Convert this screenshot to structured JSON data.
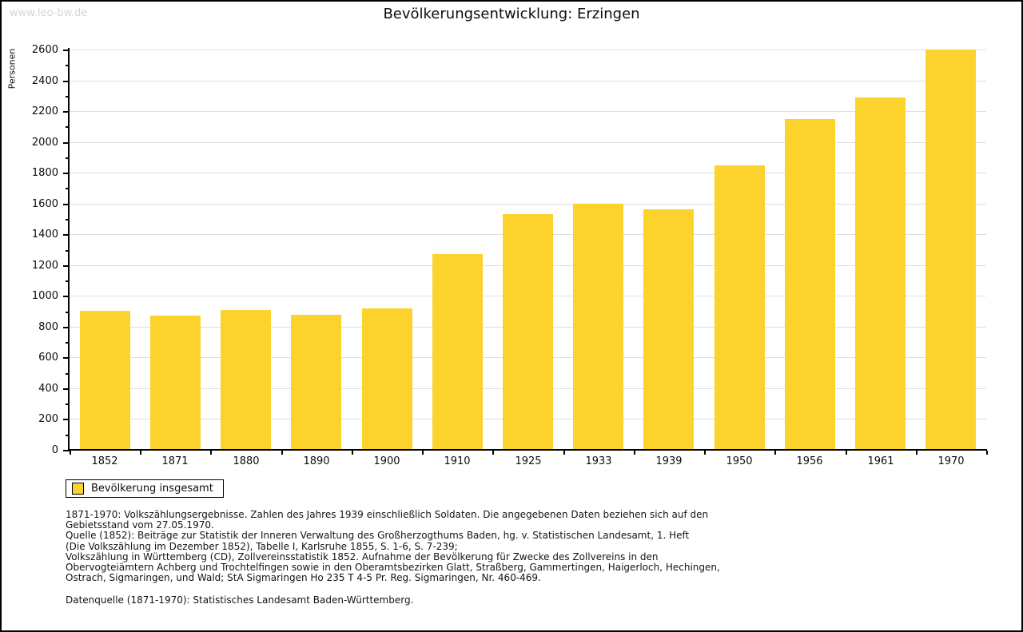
{
  "watermark": "www.leo-bw.de",
  "title": "Bevölkerungsentwicklung: Erzingen",
  "chart_data": {
    "type": "bar",
    "title": "Bevölkerungsentwicklung: Erzingen",
    "xlabel": "",
    "ylabel": "Personen",
    "categories": [
      "1852",
      "1871",
      "1880",
      "1890",
      "1900",
      "1910",
      "1925",
      "1933",
      "1939",
      "1950",
      "1956",
      "1961",
      "1970"
    ],
    "series": [
      {
        "name": "Bevölkerung insgesamt",
        "values": [
          905,
          870,
          910,
          875,
          920,
          1270,
          1530,
          1600,
          1560,
          1850,
          2150,
          2290,
          2600
        ]
      }
    ],
    "ylim": [
      0,
      2600
    ],
    "ytick_step": 200,
    "ytick_minor_step": 100,
    "grid": true,
    "legend_position": "bottom-left",
    "bar_color": "#FCD32C",
    "grid_color": "#dedede",
    "axis_color": "#000000"
  },
  "legend": {
    "label": "Bevölkerung insgesamt"
  },
  "footer": {
    "lines": [
      "1871-1970: Volkszählungsergebnisse. Zahlen des Jahres 1939 einschließlich Soldaten. Die angegebenen Daten beziehen sich auf den",
      "Gebietsstand vom 27.05.1970.",
      "Quelle (1852): Beiträge zur Statistik der Inneren Verwaltung des Großherzogthums Baden, hg. v. Statistischen Landesamt, 1. Heft",
      "(Die Volkszählung im Dezember 1852), Tabelle I, Karlsruhe 1855, S. 1-6, S. 7-239;",
      "Volkszählung in Württemberg (CD), Zollvereinsstatistik 1852. Aufnahme der Bevölkerung für Zwecke des Zollvereins in den",
      "Obervogteiämtern Achberg und Trochtelfingen sowie in den Oberamtsbezirken Glatt, Straßberg, Gammertingen, Haigerloch, Hechingen,",
      "Ostrach, Sigmaringen, und Wald; StA Sigmaringen Ho 235 T 4-5 Pr. Reg. Sigmaringen, Nr. 460-469."
    ],
    "source": "Datenquelle (1871-1970): Statistisches Landesamt Baden-Württemberg."
  }
}
